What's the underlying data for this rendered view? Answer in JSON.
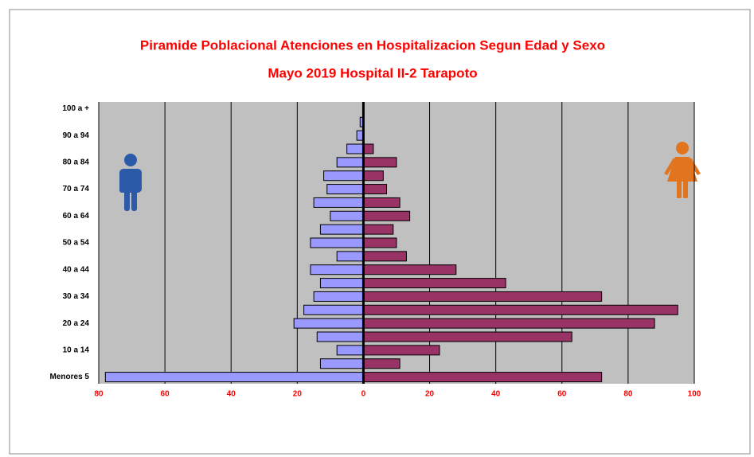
{
  "chart_data": {
    "type": "pyramid",
    "title": "Piramide Poblacional  Atenciones en Hospitalizacion  Segun Edad y Sexo",
    "subtitle": "Mayo 2019  Hospital II-2 Tarapoto",
    "categories": [
      "Menores 5",
      null,
      "10 a 14",
      null,
      "20 a 24",
      null,
      "30 a 34",
      null,
      "40 a 44",
      null,
      "50 a 54",
      null,
      "60 a 64",
      null,
      "70 a 74",
      null,
      "80 a 84",
      null,
      "90 a 94",
      null,
      "100 a +"
    ],
    "series": [
      {
        "color": "#9999ff",
        "values": [
          -78,
          -13,
          -8,
          -14,
          -21,
          -18,
          -15,
          -13,
          -16,
          -8,
          -16,
          -13,
          -10,
          -15,
          -11,
          -12,
          -8,
          -5,
          -2,
          -1,
          0
        ]
      },
      {
        "color": "#993366",
        "values": [
          72,
          11,
          23,
          63,
          88,
          95,
          72,
          43,
          28,
          13,
          10,
          9,
          14,
          11,
          7,
          6,
          10,
          3,
          0,
          0,
          0
        ]
      }
    ],
    "xlim": [
      -80,
      100
    ],
    "xticks": [
      {
        "value": -80,
        "label": "80"
      },
      {
        "value": -60,
        "label": "60"
      },
      {
        "value": -40,
        "label": "40"
      },
      {
        "value": -20,
        "label": "20"
      },
      0,
      20,
      40,
      60,
      80,
      100
    ],
    "grid": true
  }
}
